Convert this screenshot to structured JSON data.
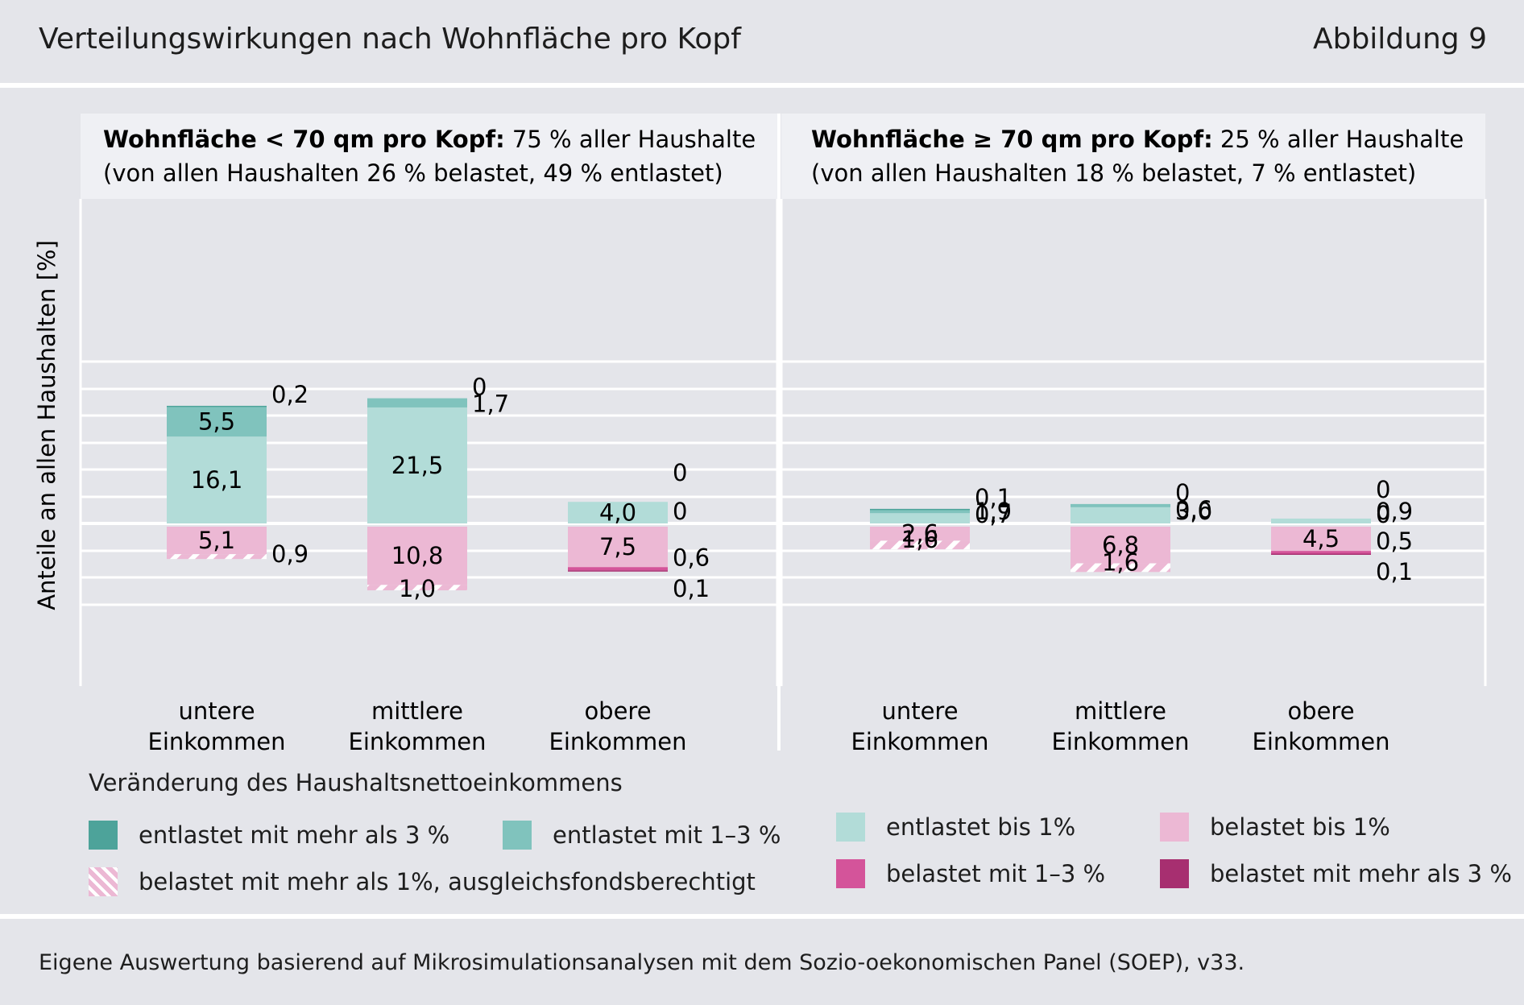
{
  "figure": {
    "title": "Verteilungswirkungen nach Wohnfläche pro Kopf",
    "label": "Abbildung 9",
    "source": "Eigene Auswertung basierend auf Mikrosimulationsanalysen mit dem Sozio-oekonomischen Panel (SOEP), v33."
  },
  "colors": {
    "background": "#e4e5ea",
    "panel_header": "#eff0f4",
    "entlastet_gt3": "#4da39a",
    "entlastet_1_3": "#80c3bd",
    "entlastet_lt1": "#b2dcd8",
    "belastet_lt1": "#ecb8d4",
    "belastet_1_3": "#d4549a",
    "belastet_gt3": "#a72f70",
    "hatch": "#ffffff"
  },
  "legend": {
    "title": "Veränderung des Haushaltsnettoeinkommens",
    "items": [
      {
        "key": "entlastet_gt3",
        "label": "entlastet mit mehr als 3 %"
      },
      {
        "key": "entlastet_1_3",
        "label": "entlastet mit 1–3 %"
      },
      {
        "key": "belastet_ausgleich",
        "label": "belastet mit mehr als 1%, ausgleichsfondsberechtigt"
      },
      {
        "key": "entlastet_lt1",
        "label": "entlastet bis 1%"
      },
      {
        "key": "belastet_lt1",
        "label": "belastet bis 1%"
      },
      {
        "key": "belastet_1_3",
        "label": "belastet mit 1–3 %"
      },
      {
        "key": "belastet_gt3",
        "label": "belastet mit mehr als 3 %"
      }
    ]
  },
  "chart_data": {
    "type": "bar",
    "stacked": true,
    "ylabel": "Anteile an allen Haushalten [%]",
    "ylim": [
      -15,
      30
    ],
    "grid": true,
    "categories": [
      "untere\nEinkommen",
      "mittlere\nEinkommen",
      "obere\nEinkommen"
    ],
    "panels": [
      {
        "title_bold": "Wohnfläche < 70 qm pro Kopf:",
        "title_rest": " 75 % aller Haushalte",
        "subtitle": "(von allen Haushalten 26 % belastet, 49 % entlastet)",
        "bars": [
          {
            "entlastet_lt1": 16.1,
            "entlastet_1_3": 5.5,
            "entlastet_gt3": 0.2,
            "belastet_lt1": 5.1,
            "belastet_ausgleich": 0.9,
            "belastet_1_3": 0,
            "belastet_gt3": 0,
            "labels": {
              "entlastet_lt1": "16,1",
              "entlastet_1_3": "5,5",
              "entlastet_gt3": "0,2",
              "belastet_lt1": "5,1",
              "belastet_ausgleich": "0,9"
            }
          },
          {
            "entlastet_lt1": 21.5,
            "entlastet_1_3": 1.7,
            "entlastet_gt3": 0,
            "belastet_lt1": 10.8,
            "belastet_ausgleich": 1.0,
            "belastet_1_3": 0,
            "belastet_gt3": 0,
            "labels": {
              "entlastet_lt1": "21,5",
              "entlastet_1_3": "1,7",
              "entlastet_gt3": "0",
              "belastet_lt1": "10,8",
              "belastet_ausgleich": "1,0"
            }
          },
          {
            "entlastet_lt1": 4.0,
            "entlastet_1_3": 0,
            "entlastet_gt3": 0,
            "belastet_lt1": 7.5,
            "belastet_ausgleich": 0,
            "belastet_1_3": 0.6,
            "belastet_gt3": 0.1,
            "labels": {
              "entlastet_lt1": "4,0",
              "entlastet_1_3": "0",
              "entlastet_gt3": "0",
              "belastet_lt1": "7,5",
              "belastet_1_3": "0,6",
              "belastet_gt3": "0,1"
            }
          }
        ]
      },
      {
        "title_bold": "Wohnfläche ≥ 70 qm pro Kopf:",
        "title_rest": " 25 % aller Haushalte",
        "subtitle": "(von allen Haushalten 18 % belastet, 7 % entlastet)",
        "bars": [
          {
            "entlastet_lt1": 1.9,
            "entlastet_1_3": 0.7,
            "entlastet_gt3": 0.1,
            "belastet_lt1": 2.6,
            "belastet_ausgleich": 1.6,
            "belastet_1_3": 0,
            "belastet_gt3": 0,
            "labels": {
              "entlastet_lt1": "1,9",
              "entlastet_1_3": "0,7",
              "entlastet_gt3": "0,1",
              "belastet_lt1": "2,6",
              "belastet_ausgleich": "1,6"
            }
          },
          {
            "entlastet_lt1": 3.0,
            "entlastet_1_3": 0.6,
            "entlastet_gt3": 0,
            "belastet_lt1": 6.8,
            "belastet_ausgleich": 1.6,
            "belastet_1_3": 0,
            "belastet_gt3": 0,
            "labels": {
              "entlastet_lt1": "3,0",
              "entlastet_1_3": "0,6",
              "entlastet_gt3": "0",
              "belastet_lt1": "6,8",
              "belastet_ausgleich": "1,6"
            }
          },
          {
            "entlastet_lt1": 0.9,
            "entlastet_1_3": 0,
            "entlastet_gt3": 0,
            "belastet_lt1": 4.5,
            "belastet_ausgleich": 0,
            "belastet_1_3": 0.5,
            "belastet_gt3": 0.1,
            "labels": {
              "entlastet_lt1": "0,9",
              "entlastet_1_3": "0",
              "entlastet_gt3": "0",
              "belastet_lt1": "4,5",
              "belastet_1_3": "0,5",
              "belastet_gt3": "0,1"
            }
          }
        ]
      }
    ]
  }
}
